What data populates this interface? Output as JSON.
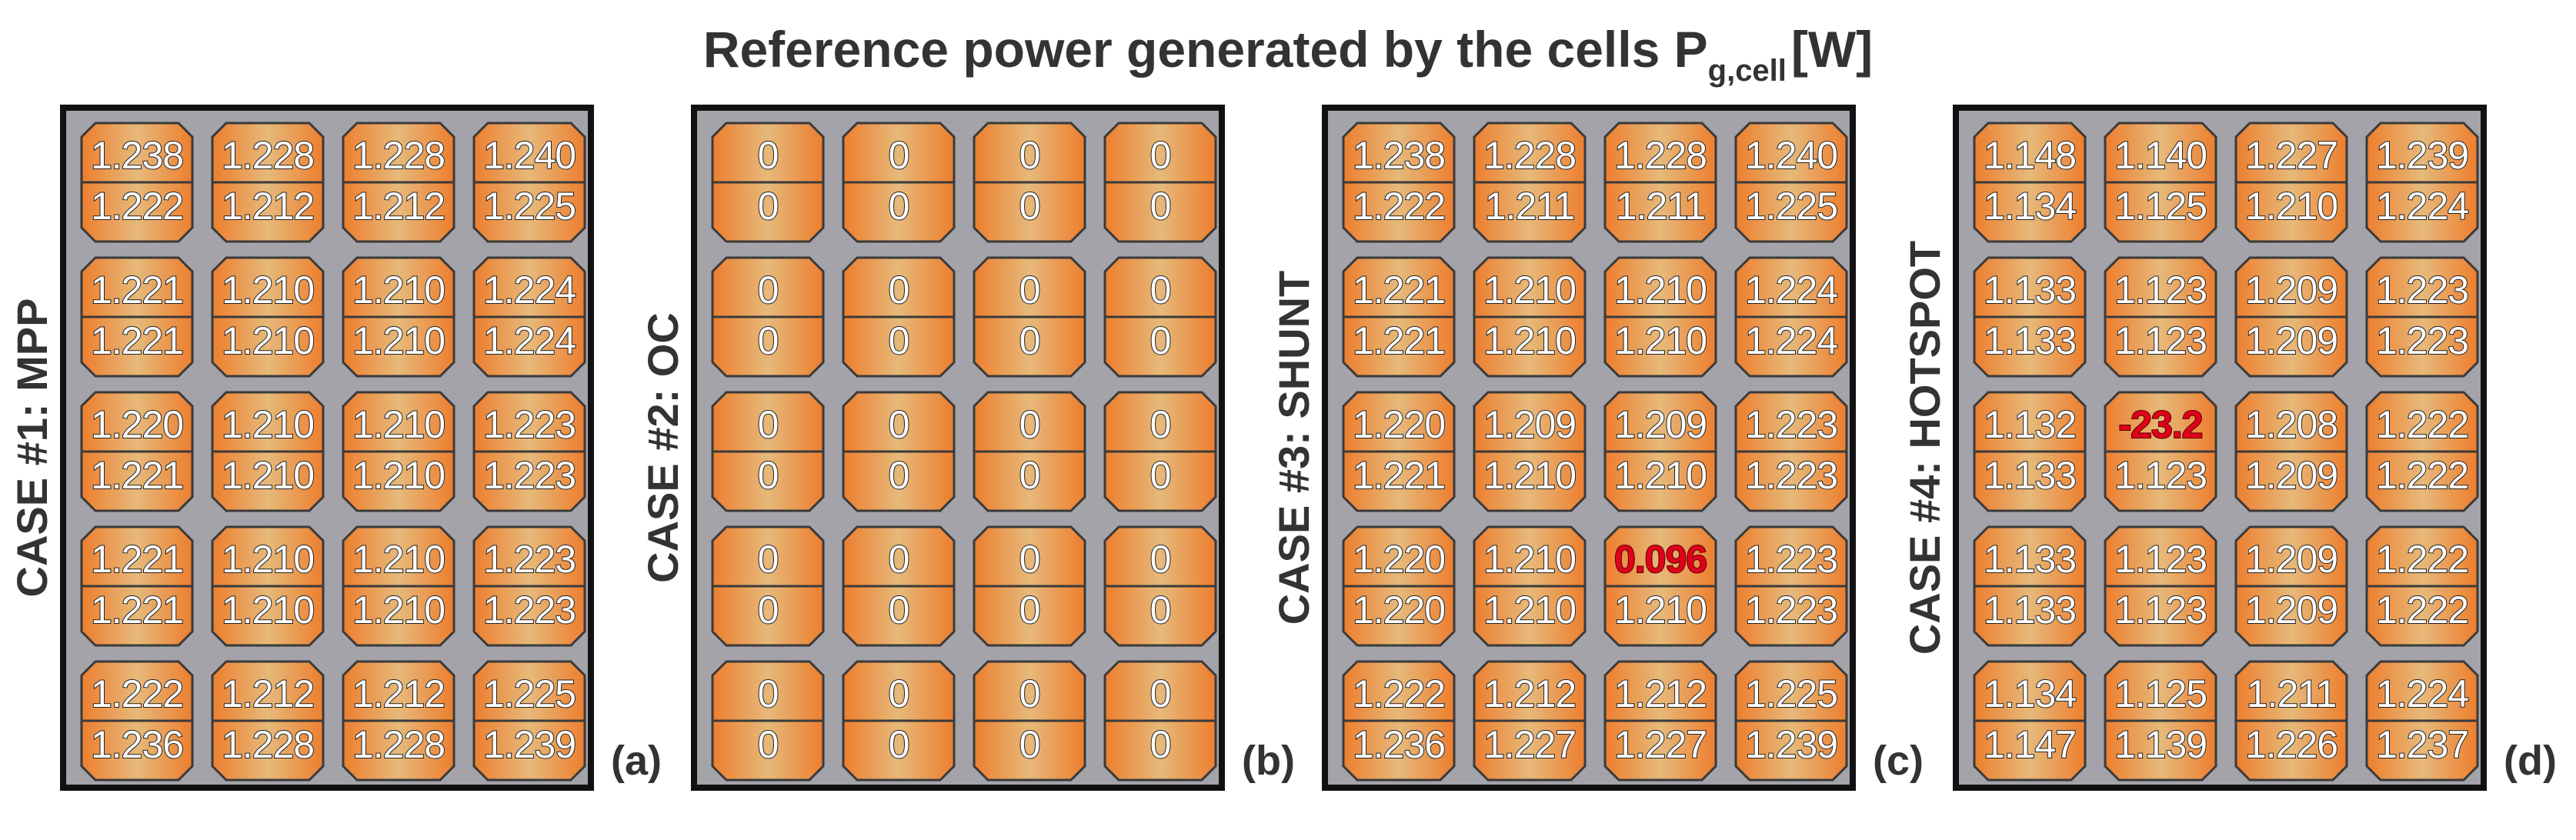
{
  "title": {
    "main": "Reference power generated by the cells P",
    "subscript": "g,cell",
    "unit": "[W]"
  },
  "colors": {
    "cell_edge": "#ed7e2e",
    "cell_center": "#e6b97a",
    "panel_bg": "#a3a3a9",
    "highlight": "#e0001a"
  },
  "panels": [
    {
      "label": "CASE #1: MPP",
      "letter": "(a)",
      "highlight": null,
      "cells": [
        [
          [
            "1.238",
            "1.222"
          ],
          [
            "1.228",
            "1.212"
          ],
          [
            "1.228",
            "1.212"
          ],
          [
            "1.240",
            "1.225"
          ]
        ],
        [
          [
            "1.221",
            "1.221"
          ],
          [
            "1.210",
            "1.210"
          ],
          [
            "1.210",
            "1.210"
          ],
          [
            "1.224",
            "1.224"
          ]
        ],
        [
          [
            "1.220",
            "1.221"
          ],
          [
            "1.210",
            "1.210"
          ],
          [
            "1.210",
            "1.210"
          ],
          [
            "1.223",
            "1.223"
          ]
        ],
        [
          [
            "1.221",
            "1.221"
          ],
          [
            "1.210",
            "1.210"
          ],
          [
            "1.210",
            "1.210"
          ],
          [
            "1.223",
            "1.223"
          ]
        ],
        [
          [
            "1.222",
            "1.236"
          ],
          [
            "1.212",
            "1.228"
          ],
          [
            "1.212",
            "1.228"
          ],
          [
            "1.225",
            "1.239"
          ]
        ]
      ]
    },
    {
      "label": "CASE #2: OC",
      "letter": "(b)",
      "highlight": null,
      "cells": [
        [
          [
            "0",
            "0"
          ],
          [
            "0",
            "0"
          ],
          [
            "0",
            "0"
          ],
          [
            "0",
            "0"
          ]
        ],
        [
          [
            "0",
            "0"
          ],
          [
            "0",
            "0"
          ],
          [
            "0",
            "0"
          ],
          [
            "0",
            "0"
          ]
        ],
        [
          [
            "0",
            "0"
          ],
          [
            "0",
            "0"
          ],
          [
            "0",
            "0"
          ],
          [
            "0",
            "0"
          ]
        ],
        [
          [
            "0",
            "0"
          ],
          [
            "0",
            "0"
          ],
          [
            "0",
            "0"
          ],
          [
            "0",
            "0"
          ]
        ],
        [
          [
            "0",
            "0"
          ],
          [
            "0",
            "0"
          ],
          [
            "0",
            "0"
          ],
          [
            "0",
            "0"
          ]
        ]
      ]
    },
    {
      "label": "CASE #3: SHUNT",
      "letter": "(c)",
      "highlight": {
        "row": 3,
        "col": 2,
        "half": 0
      },
      "cells": [
        [
          [
            "1.238",
            "1.222"
          ],
          [
            "1.228",
            "1.211"
          ],
          [
            "1.228",
            "1.211"
          ],
          [
            "1.240",
            "1.225"
          ]
        ],
        [
          [
            "1.221",
            "1.221"
          ],
          [
            "1.210",
            "1.210"
          ],
          [
            "1.210",
            "1.210"
          ],
          [
            "1.224",
            "1.224"
          ]
        ],
        [
          [
            "1.220",
            "1.221"
          ],
          [
            "1.209",
            "1.210"
          ],
          [
            "1.209",
            "1.210"
          ],
          [
            "1.223",
            "1.223"
          ]
        ],
        [
          [
            "1.220",
            "1.220"
          ],
          [
            "1.210",
            "1.210"
          ],
          [
            "0.096",
            "1.210"
          ],
          [
            "1.223",
            "1.223"
          ]
        ],
        [
          [
            "1.222",
            "1.236"
          ],
          [
            "1.212",
            "1.227"
          ],
          [
            "1.212",
            "1.227"
          ],
          [
            "1.225",
            "1.239"
          ]
        ]
      ]
    },
    {
      "label": "CASE #4: HOTSPOT",
      "letter": "(d)",
      "highlight": {
        "row": 2,
        "col": 1,
        "half": 0
      },
      "cells": [
        [
          [
            "1.148",
            "1.134"
          ],
          [
            "1.140",
            "1.125"
          ],
          [
            "1.227",
            "1.210"
          ],
          [
            "1.239",
            "1.224"
          ]
        ],
        [
          [
            "1.133",
            "1.133"
          ],
          [
            "1.123",
            "1.123"
          ],
          [
            "1.209",
            "1.209"
          ],
          [
            "1.223",
            "1.223"
          ]
        ],
        [
          [
            "1.132",
            "1.133"
          ],
          [
            "-23.2",
            "1.123"
          ],
          [
            "1.208",
            "1.209"
          ],
          [
            "1.222",
            "1.222"
          ]
        ],
        [
          [
            "1.133",
            "1.133"
          ],
          [
            "1.123",
            "1.123"
          ],
          [
            "1.209",
            "1.209"
          ],
          [
            "1.222",
            "1.222"
          ]
        ],
        [
          [
            "1.134",
            "1.147"
          ],
          [
            "1.125",
            "1.139"
          ],
          [
            "1.211",
            "1.226"
          ],
          [
            "1.224",
            "1.237"
          ]
        ]
      ]
    }
  ]
}
